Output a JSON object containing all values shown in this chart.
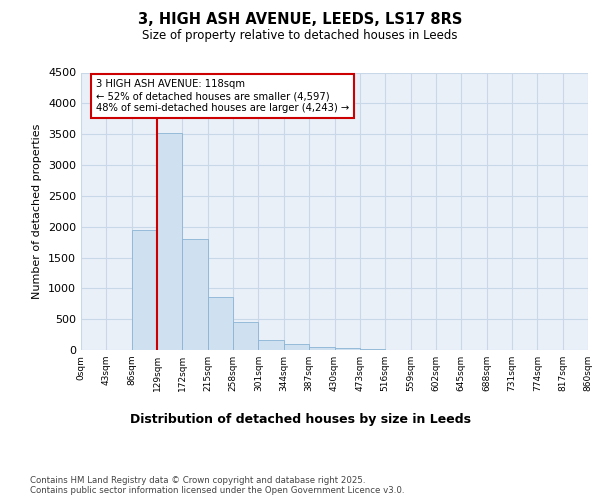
{
  "title_line1": "3, HIGH ASH AVENUE, LEEDS, LS17 8RS",
  "title_line2": "Size of property relative to detached houses in Leeds",
  "xlabel": "Distribution of detached houses by size in Leeds",
  "ylabel": "Number of detached properties",
  "bar_values": [
    0,
    0,
    1950,
    3520,
    1800,
    860,
    450,
    165,
    90,
    55,
    35,
    20,
    0,
    0,
    0,
    0,
    0,
    0,
    0,
    0
  ],
  "bar_labels": [
    "0sqm",
    "43sqm",
    "86sqm",
    "129sqm",
    "172sqm",
    "215sqm",
    "258sqm",
    "301sqm",
    "344sqm",
    "387sqm",
    "430sqm",
    "473sqm",
    "516sqm",
    "559sqm",
    "602sqm",
    "645sqm",
    "688sqm",
    "731sqm",
    "774sqm",
    "817sqm",
    "860sqm"
  ],
  "bar_color": "#cfe0f0",
  "bar_edge_color": "#8ab4d4",
  "vline_x": 3,
  "vline_color": "#cc0000",
  "annotation_text": "3 HIGH ASH AVENUE: 118sqm\n← 52% of detached houses are smaller (4,597)\n48% of semi-detached houses are larger (4,243) →",
  "annotation_box_color": "#cc0000",
  "annotation_bg": "#ffffff",
  "ylim": [
    0,
    4500
  ],
  "yticks": [
    0,
    500,
    1000,
    1500,
    2000,
    2500,
    3000,
    3500,
    4000,
    4500
  ],
  "footer_text": "Contains HM Land Registry data © Crown copyright and database right 2025.\nContains public sector information licensed under the Open Government Licence v3.0.",
  "grid_color": "#c8d8e8",
  "background_color": "#eaf0f8",
  "fig_bg": "#ffffff"
}
